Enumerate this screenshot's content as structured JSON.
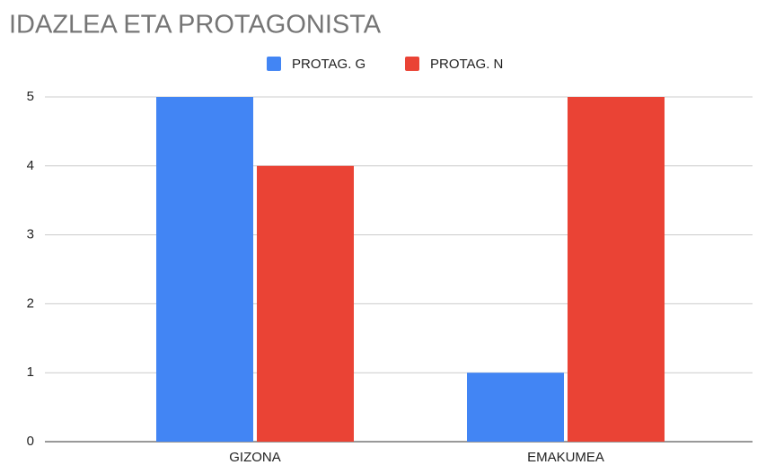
{
  "chart_data": {
    "type": "bar",
    "title": "IDAZLEA ETA PROTAGONISTA",
    "categories": [
      "GIZONA",
      "EMAKUMEA"
    ],
    "series": [
      {
        "name": "PROTAG. G",
        "color": "#4285f4",
        "values": [
          5,
          1
        ]
      },
      {
        "name": "PROTAG. N",
        "color": "#ea4335",
        "values": [
          4,
          5
        ]
      }
    ],
    "ylim": [
      0,
      5
    ],
    "yticks": [
      0,
      1,
      2,
      3,
      4,
      5
    ],
    "grid": true,
    "legend": "top"
  }
}
